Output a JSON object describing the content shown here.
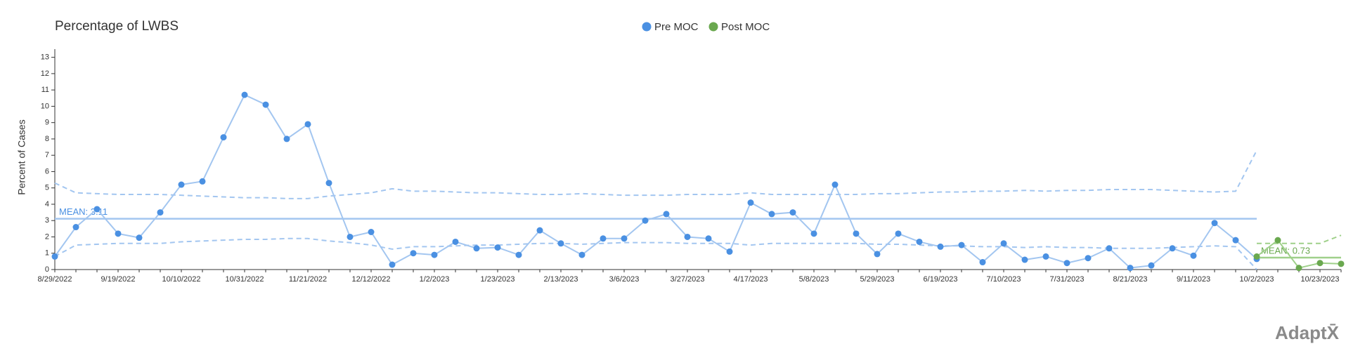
{
  "chart_data": {
    "type": "line",
    "title": "Percentage of LWBS",
    "y_label": "Percent of Cases",
    "categories": [
      "8/29/2022",
      null,
      null,
      "9/19/2022",
      null,
      null,
      "10/10/2022",
      null,
      null,
      "10/31/2022",
      null,
      null,
      "11/21/2022",
      null,
      null,
      "12/12/2022",
      null,
      null,
      "1/2/2023",
      null,
      null,
      "1/23/2023",
      null,
      null,
      "2/13/2023",
      null,
      null,
      "3/6/2023",
      null,
      null,
      "3/27/2023",
      null,
      null,
      "4/17/2023",
      null,
      null,
      "5/8/2023",
      null,
      null,
      "5/29/2023",
      null,
      null,
      "6/19/2023",
      null,
      null,
      "7/10/2023",
      null,
      null,
      "7/31/2023",
      null,
      null,
      "8/21/2023",
      null,
      null,
      "9/11/2023",
      null,
      null,
      "10/2/2023",
      null,
      null,
      "10/23/2023",
      null
    ],
    "series": [
      {
        "name": "Pre MOC",
        "color": "#4a90e2",
        "line_color": "#a3c6f0",
        "values": [
          0.8,
          2.6,
          3.7,
          2.2,
          1.95,
          3.5,
          5.2,
          5.4,
          8.1,
          10.7,
          10.1,
          8.0,
          8.9,
          5.3,
          2.0,
          2.3,
          0.3,
          1.0,
          0.9,
          1.7,
          1.3,
          1.35,
          0.9,
          2.4,
          1.6,
          0.9,
          1.9,
          1.9,
          3.0,
          3.4,
          2.0,
          1.9,
          1.1,
          4.1,
          3.4,
          3.5,
          2.2,
          5.2,
          2.2,
          0.95,
          2.2,
          1.7,
          1.4,
          1.5,
          0.45,
          1.6,
          0.6,
          0.8,
          0.4,
          0.7,
          1.3,
          0.1,
          0.25,
          1.3,
          0.85,
          2.85,
          1.8,
          0.65,
          null,
          null,
          null,
          null
        ],
        "ucl": [
          5.3,
          4.7,
          4.65,
          4.6,
          4.6,
          4.6,
          4.55,
          4.5,
          4.45,
          4.4,
          4.4,
          4.35,
          4.35,
          4.5,
          4.6,
          4.7,
          4.95,
          4.8,
          4.8,
          4.75,
          4.7,
          4.7,
          4.65,
          4.6,
          4.6,
          4.65,
          4.6,
          4.55,
          4.55,
          4.55,
          4.6,
          4.6,
          4.6,
          4.7,
          4.6,
          4.6,
          4.6,
          4.6,
          4.6,
          4.65,
          4.65,
          4.7,
          4.75,
          4.75,
          4.8,
          4.8,
          4.85,
          4.8,
          4.85,
          4.85,
          4.9,
          4.9,
          4.9,
          4.85,
          4.8,
          4.75,
          4.8,
          7.3,
          null,
          null,
          null,
          null
        ],
        "lcl": [
          0.8,
          1.5,
          1.55,
          1.6,
          1.6,
          1.6,
          1.7,
          1.75,
          1.8,
          1.85,
          1.85,
          1.9,
          1.9,
          1.75,
          1.65,
          1.5,
          1.25,
          1.4,
          1.4,
          1.45,
          1.5,
          1.5,
          1.55,
          1.6,
          1.6,
          1.55,
          1.6,
          1.65,
          1.65,
          1.65,
          1.6,
          1.6,
          1.6,
          1.5,
          1.6,
          1.6,
          1.6,
          1.6,
          1.6,
          1.55,
          1.55,
          1.5,
          1.45,
          1.45,
          1.4,
          1.4,
          1.35,
          1.4,
          1.35,
          1.35,
          1.3,
          1.3,
          1.3,
          1.35,
          1.4,
          1.45,
          1.4,
          0,
          null,
          null,
          null,
          null
        ],
        "mean": 3.11,
        "mean_label": "MEAN: 3.11"
      },
      {
        "name": "Post MOC",
        "color": "#6aa84f",
        "line_color": "#9fd08a",
        "values": [
          null,
          null,
          null,
          null,
          null,
          null,
          null,
          null,
          null,
          null,
          null,
          null,
          null,
          null,
          null,
          null,
          null,
          null,
          null,
          null,
          null,
          null,
          null,
          null,
          null,
          null,
          null,
          null,
          null,
          null,
          null,
          null,
          null,
          null,
          null,
          null,
          null,
          null,
          null,
          null,
          null,
          null,
          null,
          null,
          null,
          null,
          null,
          null,
          null,
          null,
          null,
          null,
          null,
          null,
          null,
          null,
          null,
          0.8,
          1.8,
          0.1,
          0.4,
          0.35
        ],
        "ucl": [
          null,
          null,
          null,
          null,
          null,
          null,
          null,
          null,
          null,
          null,
          null,
          null,
          null,
          null,
          null,
          null,
          null,
          null,
          null,
          null,
          null,
          null,
          null,
          null,
          null,
          null,
          null,
          null,
          null,
          null,
          null,
          null,
          null,
          null,
          null,
          null,
          null,
          null,
          null,
          null,
          null,
          null,
          null,
          null,
          null,
          null,
          null,
          null,
          null,
          null,
          null,
          null,
          null,
          null,
          null,
          null,
          null,
          1.6,
          1.6,
          1.6,
          1.6,
          2.1
        ],
        "mean": 0.73,
        "mean_label": "MEAN: 0.73"
      }
    ],
    "ylim": [
      0,
      13.5
    ],
    "yticks": [
      0,
      1,
      2,
      3,
      4,
      5,
      6,
      7,
      8,
      9,
      10,
      11,
      12,
      13
    ],
    "grid": false,
    "legend": "top"
  },
  "logo": "AdaptX̄"
}
